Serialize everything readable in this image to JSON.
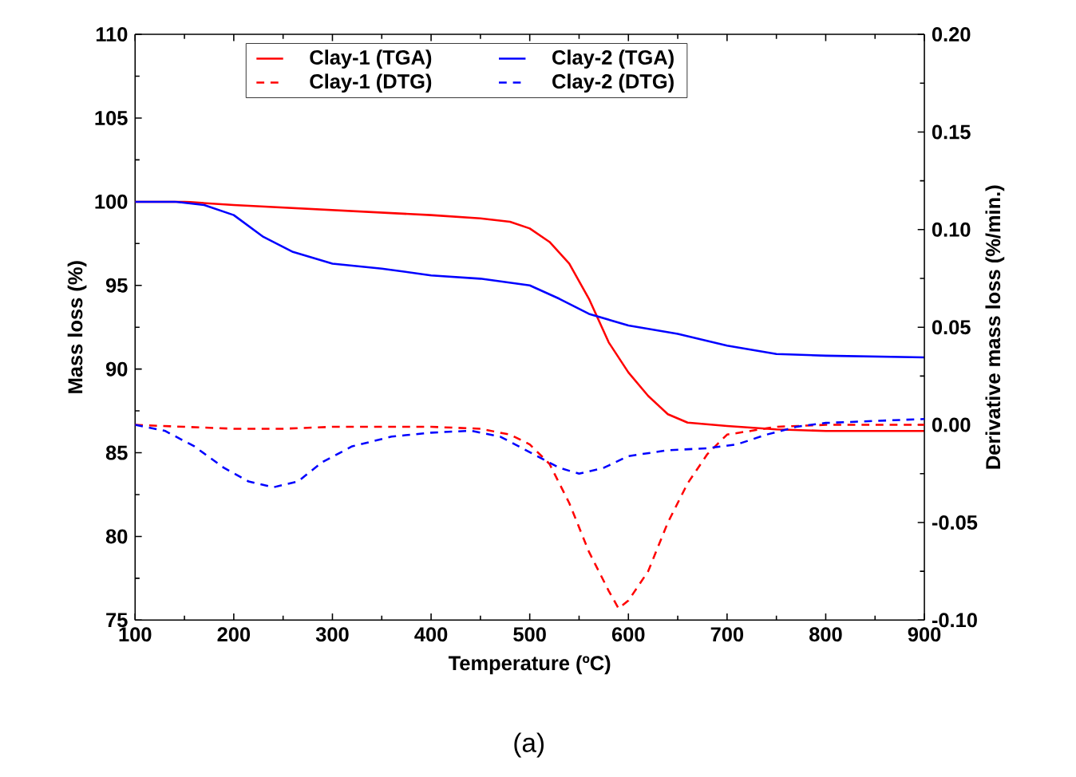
{
  "chart_data": {
    "type": "line",
    "xlabel": "Temperature (ºC)",
    "ylabel": "Mass loss (%)",
    "y2label": "Derivative mass loss (%/min.)",
    "annotations": [
      "(a)"
    ],
    "xlim": [
      100,
      900
    ],
    "xticks": [
      100,
      200,
      300,
      400,
      500,
      600,
      700,
      800,
      900
    ],
    "ylim": [
      75,
      110
    ],
    "yticks": [
      75,
      80,
      85,
      90,
      95,
      100,
      105,
      110
    ],
    "y2lim": [
      -0.1,
      0.2
    ],
    "y2ticks": [
      {
        "value": -0.1,
        "label": "-0.10"
      },
      {
        "value": -0.05,
        "label": "-0.05"
      },
      {
        "value": 0,
        "label": "0.00"
      },
      {
        "value": 0.05,
        "label": "0.05"
      },
      {
        "value": 0.1,
        "label": "0.10"
      },
      {
        "value": 0.15,
        "label": "0.15"
      },
      {
        "value": 0.2,
        "label": "0.20"
      }
    ],
    "legend": "top",
    "grid": false,
    "series": [
      {
        "name": "Clay-1 (TGA)",
        "color": "#ff0000",
        "line_style": "solid",
        "x": [
          100,
          150,
          200,
          300,
          400,
          450,
          480,
          500,
          520,
          540,
          560,
          580,
          600,
          620,
          640,
          660,
          700,
          750,
          800,
          900
        ],
        "values": [
          100,
          100,
          99.8,
          99.5,
          99.2,
          99.0,
          98.8,
          98.4,
          97.6,
          96.3,
          94.2,
          91.6,
          89.8,
          88.4,
          87.3,
          86.8,
          86.6,
          86.4,
          86.3,
          86.3
        ]
      },
      {
        "name": "Clay-2 (TGA)",
        "color": "#0000ff",
        "line_style": "solid",
        "x": [
          100,
          140,
          170,
          200,
          230,
          260,
          300,
          350,
          400,
          450,
          500,
          530,
          560,
          600,
          650,
          700,
          750,
          800,
          900
        ],
        "values": [
          100,
          100,
          99.8,
          99.2,
          97.9,
          97.0,
          96.3,
          96.0,
          95.6,
          95.4,
          95.0,
          94.2,
          93.3,
          92.6,
          92.1,
          91.4,
          90.9,
          90.8,
          90.7
        ]
      },
      {
        "name": "Clay-1 (DTG)",
        "color": "#ff0000",
        "line_style": "dashed",
        "axis": "y2",
        "x": [
          100,
          150,
          200,
          250,
          300,
          350,
          400,
          450,
          480,
          500,
          520,
          540,
          560,
          580,
          590,
          600,
          620,
          640,
          660,
          680,
          700,
          750,
          800,
          900
        ],
        "values": [
          0,
          -0.001,
          -0.002,
          -0.002,
          -0.001,
          -0.001,
          -0.001,
          -0.002,
          -0.005,
          -0.01,
          -0.02,
          -0.04,
          -0.065,
          -0.085,
          -0.094,
          -0.09,
          -0.075,
          -0.05,
          -0.03,
          -0.015,
          -0.005,
          -0.001,
          0,
          0
        ]
      },
      {
        "name": "Clay-2 (DTG)",
        "color": "#0000ff",
        "line_style": "dashed",
        "axis": "y2",
        "x": [
          100,
          130,
          160,
          190,
          215,
          240,
          265,
          290,
          320,
          360,
          400,
          440,
          470,
          500,
          530,
          550,
          575,
          600,
          640,
          680,
          710,
          740,
          770,
          800,
          850,
          900
        ],
        "values": [
          0,
          -0.003,
          -0.011,
          -0.022,
          -0.029,
          -0.032,
          -0.029,
          -0.019,
          -0.011,
          -0.006,
          -0.004,
          -0.003,
          -0.006,
          -0.014,
          -0.022,
          -0.025,
          -0.022,
          -0.016,
          -0.013,
          -0.012,
          -0.01,
          -0.005,
          -0.001,
          0.001,
          0.002,
          0.003
        ]
      }
    ]
  }
}
